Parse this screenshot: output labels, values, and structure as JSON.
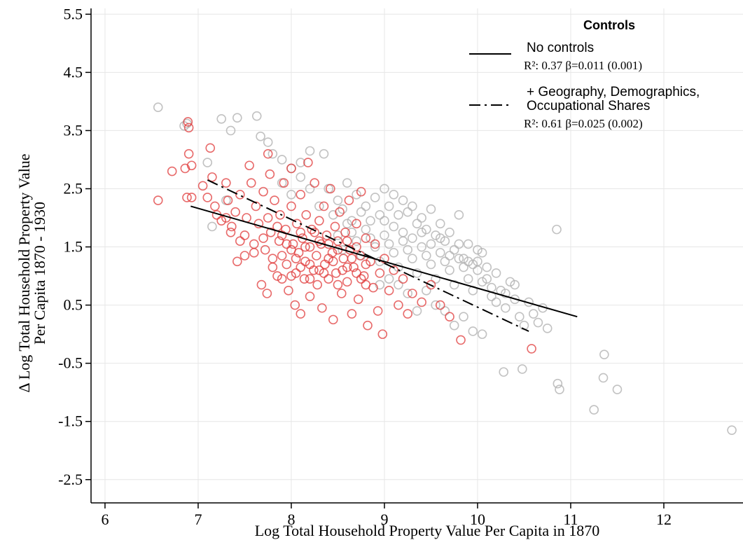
{
  "chart_data": {
    "type": "scatter",
    "title": "",
    "xlabel": "Log Total Household Property Value Per Capita in 1870",
    "ylabel_lines": [
      "Δ Log Total Household Property Value",
      "Per Capita 1870 - 1930"
    ],
    "xlim": [
      5.85,
      12.85
    ],
    "ylim": [
      -2.9,
      5.6
    ],
    "x_ticks": [
      6,
      7,
      8,
      9,
      10,
      11,
      12
    ],
    "x_tick_labels": [
      "6",
      "7",
      "8",
      "9",
      "10",
      "11",
      "12"
    ],
    "y_ticks": [
      5.5,
      4.5,
      3.5,
      2.5,
      1.5,
      0.5,
      -0.5,
      -1.5,
      -2.5
    ],
    "y_tick_labels": [
      "5.5",
      "4.5",
      "3.5",
      "2.5",
      "1.5",
      "0.5",
      "-0.5",
      "-1.5",
      "-2.5"
    ],
    "grid": true,
    "legend_position": "top-right",
    "colors": {
      "red_markers": "#e03a3a",
      "gray_markers": "#b3b3b3",
      "lines": "#000000"
    },
    "legend": {
      "title": "Controls",
      "entries": [
        {
          "style": "solid",
          "label_lines": [
            "No controls"
          ],
          "stat": "R²: 0.37 β=0.011 (0.001)"
        },
        {
          "style": "dash-dot",
          "label_lines": [
            "+ Geography, Demographics,",
            "Occupational Shares"
          ],
          "stat": "R²: 0.61 β=0.025  (0.002)"
        }
      ]
    },
    "fit_lines": [
      {
        "name": "No controls",
        "style": "solid",
        "x": [
          6.92,
          11.07
        ],
        "y": [
          2.2,
          0.3
        ]
      },
      {
        "name": "+ Geography, Demographics, Occupational Shares",
        "style": "dash-dot",
        "x": [
          7.1,
          10.55
        ],
        "y": [
          2.65,
          0.05
        ]
      }
    ],
    "series": [
      {
        "color": "red",
        "points": [
          [
            6.57,
            2.3
          ],
          [
            6.72,
            2.8
          ],
          [
            6.86,
            2.85
          ],
          [
            6.89,
            3.65
          ],
          [
            6.9,
            3.55
          ],
          [
            6.9,
            3.1
          ],
          [
            6.93,
            2.9
          ],
          [
            6.93,
            2.35
          ],
          [
            6.88,
            2.35
          ],
          [
            7.05,
            2.55
          ],
          [
            7.1,
            2.35
          ],
          [
            7.13,
            3.2
          ],
          [
            7.15,
            2.7
          ],
          [
            7.18,
            2.2
          ],
          [
            7.2,
            2.05
          ],
          [
            7.25,
            1.95
          ],
          [
            7.3,
            2.6
          ],
          [
            7.32,
            2.3
          ],
          [
            7.36,
            1.85
          ],
          [
            7.4,
            2.1
          ],
          [
            7.42,
            1.25
          ],
          [
            7.45,
            2.4
          ],
          [
            7.5,
            1.7
          ],
          [
            7.52,
            2.0
          ],
          [
            7.55,
            2.9
          ],
          [
            7.57,
            2.6
          ],
          [
            7.6,
            1.55
          ],
          [
            7.62,
            2.2
          ],
          [
            7.65,
            1.9
          ],
          [
            7.68,
            0.85
          ],
          [
            7.7,
            2.45
          ],
          [
            7.72,
            1.45
          ],
          [
            7.74,
            0.7
          ],
          [
            7.75,
            3.1
          ],
          [
            7.77,
            2.75
          ],
          [
            7.78,
            1.75
          ],
          [
            7.8,
            1.15
          ],
          [
            7.82,
            2.3
          ],
          [
            7.85,
            1.0
          ],
          [
            7.87,
            1.6
          ],
          [
            7.88,
            2.05
          ],
          [
            7.9,
            1.35
          ],
          [
            7.9,
            0.95
          ],
          [
            7.92,
            2.6
          ],
          [
            7.94,
            1.8
          ],
          [
            7.95,
            1.2
          ],
          [
            7.97,
            0.75
          ],
          [
            8.0,
            2.85
          ],
          [
            8.0,
            2.2
          ],
          [
            8.02,
            1.55
          ],
          [
            8.04,
            0.5
          ],
          [
            8.05,
            1.05
          ],
          [
            8.06,
            1.9
          ],
          [
            8.08,
            1.4
          ],
          [
            8.1,
            0.35
          ],
          [
            8.1,
            2.4
          ],
          [
            8.12,
            1.65
          ],
          [
            8.14,
            0.95
          ],
          [
            8.15,
            1.25
          ],
          [
            8.16,
            2.05
          ],
          [
            8.18,
            2.95
          ],
          [
            8.2,
            1.5
          ],
          [
            8.2,
            0.65
          ],
          [
            8.22,
            1.8
          ],
          [
            8.24,
            1.1
          ],
          [
            8.25,
            2.6
          ],
          [
            8.27,
            1.35
          ],
          [
            8.28,
            0.85
          ],
          [
            8.3,
            1.95
          ],
          [
            8.32,
            1.55
          ],
          [
            8.33,
            0.45
          ],
          [
            8.35,
            2.2
          ],
          [
            8.36,
            1.2
          ],
          [
            8.38,
            1.7
          ],
          [
            8.4,
            0.95
          ],
          [
            8.42,
            2.5
          ],
          [
            8.44,
            1.4
          ],
          [
            8.45,
            0.25
          ],
          [
            8.47,
            1.85
          ],
          [
            8.48,
            1.05
          ],
          [
            8.5,
            1.6
          ],
          [
            8.52,
            2.1
          ],
          [
            8.54,
            0.7
          ],
          [
            8.56,
            1.3
          ],
          [
            8.58,
            1.75
          ],
          [
            8.6,
            0.9
          ],
          [
            8.62,
            2.3
          ],
          [
            8.63,
            1.45
          ],
          [
            8.65,
            0.35
          ],
          [
            8.67,
            1.15
          ],
          [
            8.7,
            1.9
          ],
          [
            8.72,
            0.6
          ],
          [
            8.74,
            1.35
          ],
          [
            8.75,
            2.45
          ],
          [
            8.78,
            1.0
          ],
          [
            8.8,
            1.65
          ],
          [
            8.82,
            0.15
          ],
          [
            8.85,
            1.25
          ],
          [
            8.88,
            0.8
          ],
          [
            8.9,
            1.55
          ],
          [
            8.93,
            0.4
          ],
          [
            8.95,
            1.05
          ],
          [
            8.98,
            0.0
          ],
          [
            9.0,
            1.3
          ],
          [
            9.05,
            0.75
          ],
          [
            9.1,
            1.1
          ],
          [
            9.15,
            0.5
          ],
          [
            9.2,
            0.95
          ],
          [
            9.25,
            0.35
          ],
          [
            9.3,
            0.7
          ],
          [
            9.4,
            0.55
          ],
          [
            9.5,
            0.85
          ],
          [
            9.6,
            0.5
          ],
          [
            9.7,
            0.3
          ],
          [
            9.82,
            -0.1
          ],
          [
            10.58,
            -0.25
          ],
          [
            7.6,
            1.4
          ],
          [
            7.7,
            1.65
          ],
          [
            7.8,
            1.3
          ],
          [
            7.9,
            1.7
          ],
          [
            8.0,
            1.45
          ],
          [
            8.1,
            1.75
          ],
          [
            8.2,
            1.2
          ],
          [
            8.3,
            1.6
          ],
          [
            8.4,
            1.3
          ],
          [
            8.5,
            1.45
          ],
          [
            8.6,
            1.15
          ],
          [
            8.7,
            1.5
          ],
          [
            8.8,
            1.2
          ],
          [
            7.75,
            2.0
          ],
          [
            7.85,
            1.85
          ],
          [
            7.95,
            1.55
          ],
          [
            8.05,
            1.3
          ],
          [
            8.15,
            1.5
          ],
          [
            8.25,
            1.75
          ],
          [
            8.35,
            1.05
          ],
          [
            8.45,
            1.25
          ],
          [
            8.55,
            1.1
          ],
          [
            8.65,
            1.3
          ],
          [
            8.75,
            0.95
          ],
          [
            7.5,
            1.35
          ],
          [
            7.45,
            1.6
          ],
          [
            7.35,
            1.75
          ],
          [
            7.3,
            2.0
          ],
          [
            8.0,
            1.0
          ],
          [
            8.1,
            1.15
          ],
          [
            8.2,
            0.95
          ],
          [
            8.3,
            1.1
          ],
          [
            8.4,
            1.55
          ],
          [
            8.5,
            0.85
          ],
          [
            8.6,
            1.6
          ],
          [
            8.7,
            1.05
          ],
          [
            8.8,
            0.85
          ]
        ]
      },
      {
        "color": "gray",
        "points": [
          [
            6.57,
            3.9
          ],
          [
            6.85,
            3.58
          ],
          [
            6.88,
            3.62
          ],
          [
            7.25,
            3.7
          ],
          [
            7.35,
            3.5
          ],
          [
            7.42,
            3.72
          ],
          [
            7.63,
            3.75
          ],
          [
            7.67,
            3.4
          ],
          [
            7.75,
            3.3
          ],
          [
            7.8,
            3.1
          ],
          [
            7.9,
            3.0
          ],
          [
            8.0,
            2.85
          ],
          [
            8.1,
            2.95
          ],
          [
            8.2,
            3.15
          ],
          [
            8.35,
            3.1
          ],
          [
            7.1,
            2.95
          ],
          [
            7.15,
            1.85
          ],
          [
            7.3,
            2.3
          ],
          [
            8.4,
            2.5
          ],
          [
            8.5,
            2.3
          ],
          [
            8.6,
            2.6
          ],
          [
            8.7,
            2.4
          ],
          [
            8.8,
            2.2
          ],
          [
            8.9,
            2.35
          ],
          [
            9.0,
            2.5
          ],
          [
            9.05,
            2.2
          ],
          [
            9.1,
            2.4
          ],
          [
            9.15,
            2.05
          ],
          [
            9.2,
            2.3
          ],
          [
            9.25,
            2.1
          ],
          [
            9.3,
            2.2
          ],
          [
            9.35,
            1.9
          ],
          [
            9.4,
            2.0
          ],
          [
            9.45,
            1.8
          ],
          [
            9.5,
            2.15
          ],
          [
            9.55,
            1.7
          ],
          [
            9.6,
            1.9
          ],
          [
            9.65,
            1.6
          ],
          [
            9.7,
            1.75
          ],
          [
            9.75,
            1.45
          ],
          [
            9.8,
            2.05
          ],
          [
            9.85,
            1.3
          ],
          [
            9.9,
            1.55
          ],
          [
            9.95,
            1.2
          ],
          [
            10.0,
            1.1
          ],
          [
            10.05,
            1.4
          ],
          [
            10.1,
            0.95
          ],
          [
            10.15,
            0.8
          ],
          [
            10.2,
            0.55
          ],
          [
            10.25,
            0.75
          ],
          [
            10.3,
            0.45
          ],
          [
            10.35,
            0.9
          ],
          [
            10.4,
            0.6
          ],
          [
            10.45,
            0.3
          ],
          [
            10.5,
            0.15
          ],
          [
            10.55,
            0.55
          ],
          [
            10.6,
            0.35
          ],
          [
            10.65,
            0.2
          ],
          [
            10.7,
            0.45
          ],
          [
            10.75,
            0.1
          ],
          [
            10.85,
            1.8
          ],
          [
            10.86,
            -0.85
          ],
          [
            10.88,
            -0.95
          ],
          [
            10.28,
            -0.65
          ],
          [
            10.48,
            -0.6
          ],
          [
            11.25,
            -1.3
          ],
          [
            11.35,
            -0.75
          ],
          [
            11.36,
            -0.35
          ],
          [
            11.5,
            -0.95
          ],
          [
            12.73,
            -1.65
          ],
          [
            8.5,
            1.7
          ],
          [
            8.6,
            1.9
          ],
          [
            8.7,
            1.6
          ],
          [
            8.8,
            1.8
          ],
          [
            8.9,
            1.5
          ],
          [
            9.0,
            1.7
          ],
          [
            9.1,
            1.4
          ],
          [
            9.2,
            1.6
          ],
          [
            9.3,
            1.3
          ],
          [
            9.4,
            1.5
          ],
          [
            9.5,
            1.2
          ],
          [
            9.6,
            1.4
          ],
          [
            9.7,
            1.1
          ],
          [
            9.8,
            1.3
          ],
          [
            9.9,
            0.95
          ],
          [
            10.0,
            1.25
          ],
          [
            8.55,
            1.45
          ],
          [
            8.65,
            1.75
          ],
          [
            8.75,
            1.35
          ],
          [
            8.85,
            1.65
          ],
          [
            8.95,
            1.25
          ],
          [
            9.05,
            1.55
          ],
          [
            9.15,
            1.15
          ],
          [
            9.25,
            1.45
          ],
          [
            9.35,
            1.05
          ],
          [
            9.45,
            1.35
          ],
          [
            9.55,
            0.95
          ],
          [
            9.65,
            1.25
          ],
          [
            9.75,
            0.85
          ],
          [
            9.85,
            1.15
          ],
          [
            9.95,
            0.75
          ],
          [
            10.05,
            0.9
          ],
          [
            10.15,
            0.65
          ],
          [
            10.3,
            0.7
          ],
          [
            10.4,
            0.85
          ],
          [
            9.0,
            1.95
          ],
          [
            9.1,
            1.85
          ],
          [
            9.2,
            1.75
          ],
          [
            9.3,
            1.65
          ],
          [
            9.4,
            1.75
          ],
          [
            9.5,
            1.55
          ],
          [
            9.6,
            1.65
          ],
          [
            9.7,
            1.35
          ],
          [
            9.8,
            1.55
          ],
          [
            9.9,
            1.25
          ],
          [
            10.0,
            1.45
          ],
          [
            10.1,
            1.15
          ],
          [
            10.2,
            1.05
          ],
          [
            9.45,
            0.75
          ],
          [
            9.55,
            0.5
          ],
          [
            9.65,
            0.4
          ],
          [
            9.75,
            0.15
          ],
          [
            9.85,
            0.3
          ],
          [
            9.95,
            0.05
          ],
          [
            10.05,
            0.0
          ],
          [
            9.35,
            0.4
          ],
          [
            9.25,
            0.7
          ],
          [
            9.15,
            0.85
          ],
          [
            9.05,
            0.95
          ],
          [
            8.95,
            0.85
          ],
          [
            8.45,
            2.05
          ],
          [
            8.55,
            2.15
          ],
          [
            8.65,
            1.95
          ],
          [
            8.75,
            2.1
          ],
          [
            8.85,
            1.95
          ],
          [
            8.95,
            2.05
          ],
          [
            7.9,
            2.6
          ],
          [
            8.0,
            2.4
          ],
          [
            8.1,
            2.7
          ],
          [
            8.2,
            2.5
          ],
          [
            8.3,
            2.2
          ]
        ]
      }
    ]
  }
}
